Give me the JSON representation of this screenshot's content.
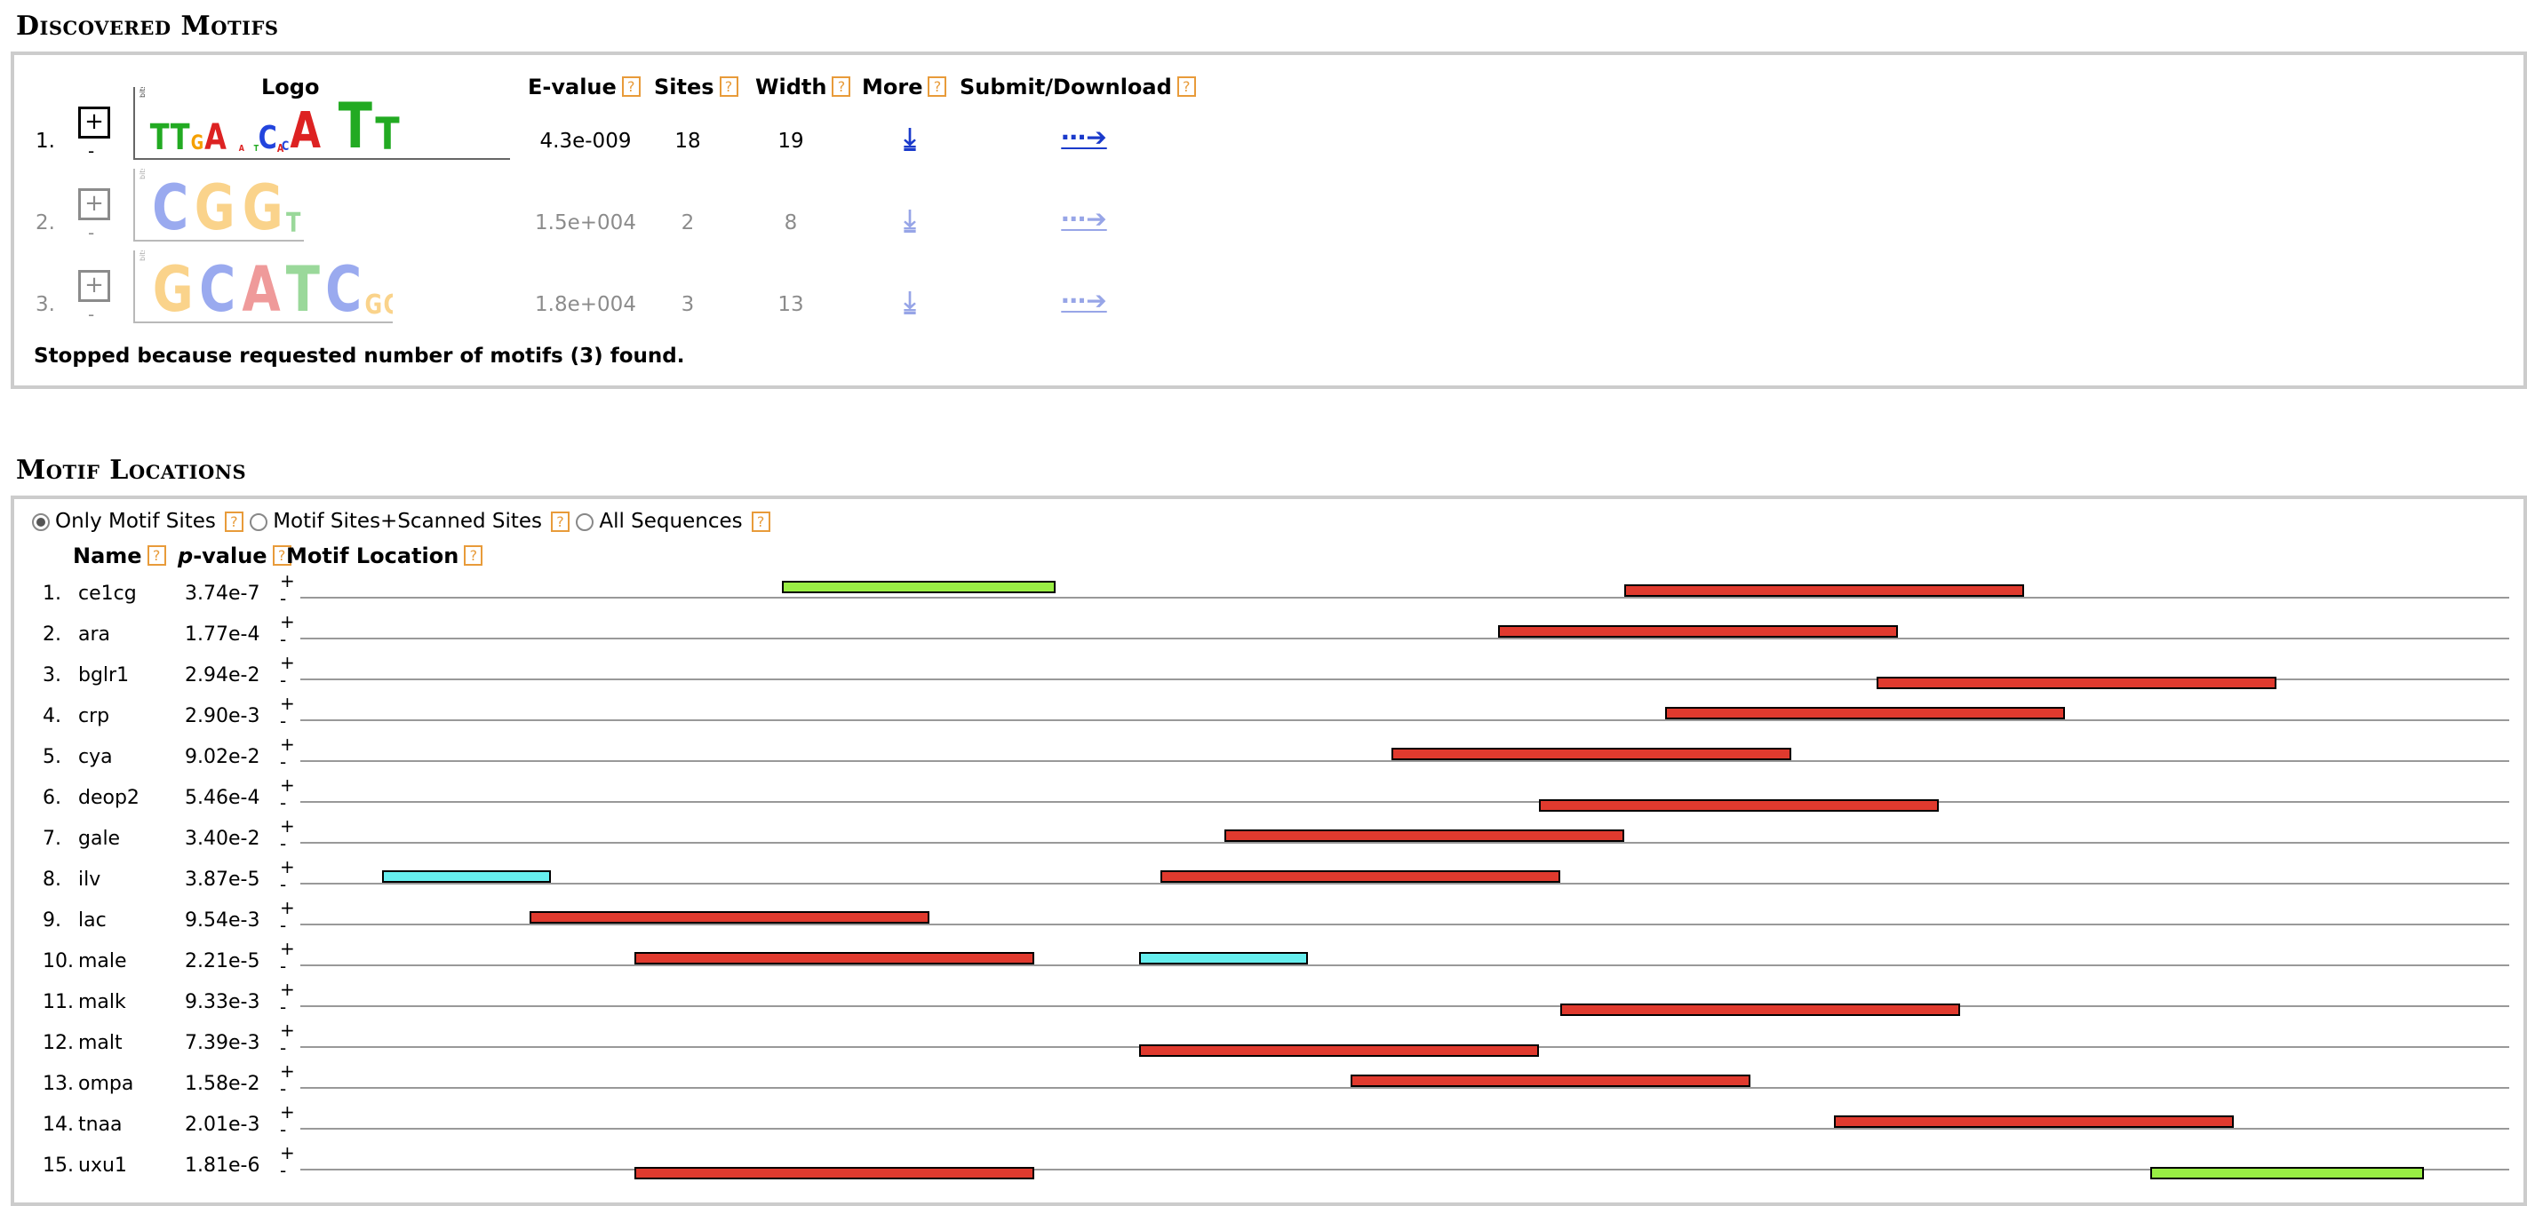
{
  "discovered": {
    "title": "Discovered Motifs",
    "headers": {
      "logo": "Logo",
      "evalue": "E-value",
      "sites": "Sites",
      "width": "Width",
      "more": "More",
      "submit": "Submit/Download"
    },
    "help_glyph": "?",
    "motifs": [
      {
        "num": "1.",
        "expand": "+",
        "collapse": "-",
        "evalue": "4.3e-009",
        "sites": "18",
        "width": "19",
        "logo": "TTGA A TCACA TT",
        "bits": "bits",
        "more_icon": "download-arrow-icon",
        "submit_icon": "dotted-arrow-icon",
        "more_glyph": "⤓",
        "submit_glyph": "⋯➔"
      },
      {
        "num": "2.",
        "expand": "+",
        "collapse": "-",
        "evalue": "1.5e+004",
        "sites": "2",
        "width": "8",
        "logo": "CGGTGGGG",
        "bits": "bits",
        "more_icon": "download-arrow-icon",
        "submit_icon": "dotted-arrow-icon",
        "more_glyph": "⤓",
        "submit_glyph": "⋯➔"
      },
      {
        "num": "3.",
        "expand": "+",
        "collapse": "-",
        "evalue": "1.8e+004",
        "sites": "3",
        "width": "13",
        "logo": "GCATCGGAGAGA",
        "bits": "bits",
        "more_icon": "download-arrow-icon",
        "submit_icon": "dotted-arrow-icon",
        "more_glyph": "⤓",
        "submit_glyph": "⋯➔"
      }
    ],
    "stopped": "Stopped because requested number of motifs (3) found."
  },
  "locations": {
    "title": "Motif Locations",
    "options": [
      "Only Motif Sites",
      "Motif Sites+Scanned Sites",
      "All Sequences"
    ],
    "selected_option": "Only Motif Sites",
    "headers": {
      "name": "Name",
      "pvalue_p": "p",
      "pvalue_rest": "-value",
      "location": "Motif Location"
    },
    "seq_plus": "+",
    "seq_minus": "-",
    "sequences": [
      {
        "num": "1.",
        "name": "ce1cg",
        "pvalue": "3.74e-7"
      },
      {
        "num": "2.",
        "name": "ara",
        "pvalue": "1.77e-4"
      },
      {
        "num": "3.",
        "name": "bglr1",
        "pvalue": "2.94e-2"
      },
      {
        "num": "4.",
        "name": "crp",
        "pvalue": "2.90e-3"
      },
      {
        "num": "5.",
        "name": "cya",
        "pvalue": "9.02e-2"
      },
      {
        "num": "6.",
        "name": "deop2",
        "pvalue": "5.46e-4"
      },
      {
        "num": "7.",
        "name": "gale",
        "pvalue": "3.40e-2"
      },
      {
        "num": "8.",
        "name": "ilv",
        "pvalue": "3.87e-5"
      },
      {
        "num": "9.",
        "name": "lac",
        "pvalue": "9.54e-3"
      },
      {
        "num": "10.",
        "name": "male",
        "pvalue": "2.21e-5"
      },
      {
        "num": "11.",
        "name": "malk",
        "pvalue": "9.33e-3"
      },
      {
        "num": "12.",
        "name": "malt",
        "pvalue": "7.39e-3"
      },
      {
        "num": "13.",
        "name": "ompa",
        "pvalue": "1.58e-2"
      },
      {
        "num": "14.",
        "name": "tnaa",
        "pvalue": "2.01e-3"
      },
      {
        "num": "15.",
        "name": "uxu1",
        "pvalue": "1.81e-6"
      }
    ]
  },
  "colors": {
    "motif1": "#e03a2e",
    "motif2": "#66eeee",
    "motif3": "#99ee44",
    "help": "#e89b3a",
    "link": "#1a3acb"
  }
}
